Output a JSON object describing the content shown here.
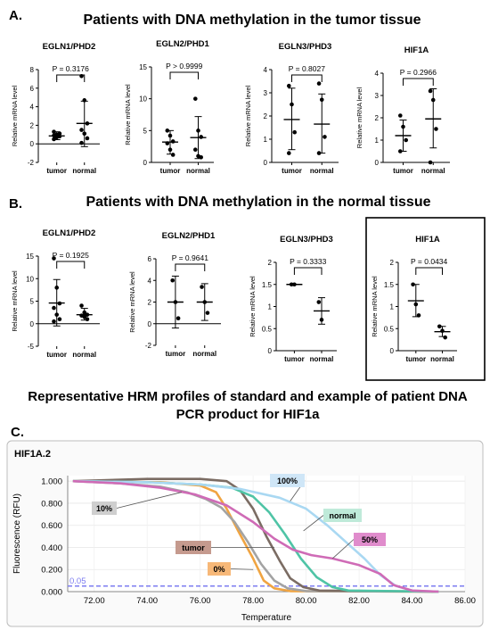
{
  "panels": {
    "A": {
      "label": "A.",
      "title": "Patients with DNA methylation in the tumor tissue"
    },
    "B": {
      "label": "B.",
      "title": "Patients with DNA methylation in the normal tissue"
    },
    "C": {
      "label": "C.",
      "title_line1": "Representative HRM profiles of standard and example of patient DNA",
      "title_line2": "PCR product for HIF1a"
    }
  },
  "chart_data": [
    {
      "id": "A1",
      "type": "scatter",
      "title": "EGLN1/PHD2",
      "ylabel": "Relative mRNA level",
      "ylim": [
        -2,
        8
      ],
      "yticks": [
        -2,
        0,
        2,
        4,
        6,
        8
      ],
      "categories": [
        "tumor",
        "normal"
      ],
      "p_label": "P = 0.3176",
      "series": [
        {
          "name": "tumor",
          "points": [
            0.5,
            0.7,
            0.8,
            0.9,
            1.0,
            1.1,
            1.3
          ],
          "mean": 0.85,
          "sd_low": 0.45,
          "sd_high": 1.3
        },
        {
          "name": "normal",
          "points": [
            7.3,
            4.7,
            2.2,
            1.5,
            1.1,
            0.6,
            0.1
          ],
          "mean": 2.2,
          "sd_low": -0.3,
          "sd_high": 4.6
        }
      ]
    },
    {
      "id": "A2",
      "type": "scatter",
      "title": "EGLN2/PHD1",
      "ylabel": "Relative mRNA level",
      "ylim": [
        0,
        15
      ],
      "yticks": [
        0,
        5,
        10,
        15
      ],
      "categories": [
        "tumor",
        "normal"
      ],
      "p_label": "P > 0.9999",
      "series": [
        {
          "name": "tumor",
          "points": [
            5.0,
            4.2,
            3.3,
            3.0,
            2.0,
            1.2
          ],
          "mean": 3.2,
          "sd_low": 1.3,
          "sd_high": 5.0
        },
        {
          "name": "normal",
          "points": [
            10.0,
            5.0,
            4.0,
            2.0,
            1.0,
            0.8
          ],
          "mean": 3.9,
          "sd_low": 0.6,
          "sd_high": 7.2
        }
      ]
    },
    {
      "id": "A3",
      "type": "scatter",
      "title": "EGLN3/PHD3",
      "ylabel": "Relative mRNA level",
      "ylim": [
        0,
        4
      ],
      "yticks": [
        0,
        1,
        2,
        3,
        4
      ],
      "categories": [
        "tumor",
        "normal"
      ],
      "p_label": "P = 0.8027",
      "series": [
        {
          "name": "tumor",
          "points": [
            3.3,
            2.5,
            1.3,
            0.4
          ],
          "mean": 1.85,
          "sd_low": 0.55,
          "sd_high": 3.2
        },
        {
          "name": "normal",
          "points": [
            3.4,
            2.7,
            1.1,
            0.4
          ],
          "mean": 1.65,
          "sd_low": 0.4,
          "sd_high": 2.95
        }
      ]
    },
    {
      "id": "A4",
      "type": "scatter",
      "title": "HIF1A",
      "ylabel": "Relative mRNA level",
      "ylim": [
        0,
        4
      ],
      "yticks": [
        0,
        1,
        2,
        3,
        4
      ],
      "categories": [
        "tumor",
        "normal"
      ],
      "p_label": "P = 0.2966",
      "series": [
        {
          "name": "tumor",
          "points": [
            2.1,
            1.6,
            1.0,
            0.5
          ],
          "mean": 1.2,
          "sd_low": 0.5,
          "sd_high": 1.9
        },
        {
          "name": "normal",
          "points": [
            3.2,
            2.8,
            1.5,
            0.0
          ],
          "mean": 1.95,
          "sd_low": 0.65,
          "sd_high": 3.3
        }
      ]
    },
    {
      "id": "B1",
      "type": "scatter",
      "title": "EGLN1/PHD2",
      "ylabel": "Relative mRNA level",
      "ylim": [
        -5,
        15
      ],
      "yticks": [
        -5,
        0,
        5,
        10,
        15
      ],
      "categories": [
        "tumor",
        "normal"
      ],
      "p_label": "P = 0.1925",
      "series": [
        {
          "name": "tumor",
          "points": [
            14.5,
            8.0,
            4.5,
            3.5,
            2.0,
            1.0,
            0.5
          ],
          "mean": 4.6,
          "sd_low": -0.5,
          "sd_high": 9.8
        },
        {
          "name": "normal",
          "points": [
            4.0,
            2.5,
            2.0,
            1.8,
            1.5,
            1.0
          ],
          "mean": 2.0,
          "sd_low": 0.8,
          "sd_high": 3.4
        }
      ]
    },
    {
      "id": "B2",
      "type": "scatter",
      "title": "EGLN2/PHD1",
      "ylabel": "Relative mRNA level",
      "ylim": [
        -2,
        6
      ],
      "yticks": [
        -2,
        0,
        2,
        4,
        6
      ],
      "categories": [
        "tumor",
        "normal"
      ],
      "p_label": "P = 0.9641",
      "series": [
        {
          "name": "tumor",
          "points": [
            4.0,
            2.0,
            0.5
          ],
          "mean": 2.0,
          "sd_low": -0.4,
          "sd_high": 4.4
        },
        {
          "name": "normal",
          "points": [
            3.4,
            2.0,
            1.0
          ],
          "mean": 2.0,
          "sd_low": 0.3,
          "sd_high": 3.7
        }
      ]
    },
    {
      "id": "B3",
      "type": "scatter",
      "title": "EGLN3/PHD3",
      "ylabel": "Relative mRNA level",
      "ylim": [
        0,
        2.0
      ],
      "yticks": [
        0,
        0.5,
        1.0,
        1.5,
        2.0
      ],
      "categories": [
        "tumor",
        "normal"
      ],
      "p_label": "P = 0.3333",
      "series": [
        {
          "name": "tumor",
          "points": [
            1.5,
            1.5
          ],
          "mean": 1.5,
          "sd_low": 1.5,
          "sd_high": 1.5
        },
        {
          "name": "normal",
          "points": [
            1.1,
            0.7
          ],
          "mean": 0.9,
          "sd_low": 0.6,
          "sd_high": 1.2
        }
      ]
    },
    {
      "id": "B4",
      "type": "scatter",
      "title": "HIF1A",
      "ylabel": "Relative mRNA level",
      "ylim": [
        0,
        2.0
      ],
      "yticks": [
        0,
        0.5,
        1.0,
        1.5,
        2.0
      ],
      "categories": [
        "tumor",
        "normal"
      ],
      "p_label": "P = 0.0434",
      "boxed": true,
      "series": [
        {
          "name": "tumor",
          "points": [
            1.5,
            1.05,
            0.8
          ],
          "mean": 1.13,
          "sd_low": 0.77,
          "sd_high": 1.5
        },
        {
          "name": "normal",
          "points": [
            0.55,
            0.45,
            0.3
          ],
          "mean": 0.43,
          "sd_low": 0.32,
          "sd_high": 0.55
        }
      ]
    },
    {
      "id": "C",
      "type": "line",
      "title": "HIF1A.2",
      "xlabel": "Temperature",
      "ylabel": "Fluorescence (RFU)",
      "xlim": [
        71,
        86
      ],
      "ylim": [
        0,
        1.05
      ],
      "xticks": [
        72,
        74,
        76,
        78,
        80,
        82,
        84,
        86
      ],
      "yticks": [
        0,
        0.2,
        0.4,
        0.6,
        0.8,
        1.0
      ],
      "threshold": {
        "value": 0.05,
        "label": "0.05",
        "color": "#7c7cf0"
      },
      "series": [
        {
          "name": "0%",
          "color": "#f0a441",
          "x": [
            71.2,
            74.5,
            76.0,
            76.6,
            77.0,
            77.5,
            78.0,
            78.4,
            78.8,
            79.4,
            85
          ],
          "y": [
            1.0,
            0.99,
            0.96,
            0.9,
            0.75,
            0.52,
            0.3,
            0.1,
            0.03,
            0.005,
            0.0
          ]
        },
        {
          "name": "10%",
          "color": "#a3a3a3",
          "x": [
            71.2,
            73.0,
            74.5,
            75.5,
            76.2,
            76.8,
            77.3,
            77.8,
            78.3,
            78.8,
            79.3,
            80.0,
            85
          ],
          "y": [
            1.0,
            0.98,
            0.95,
            0.9,
            0.84,
            0.76,
            0.63,
            0.45,
            0.25,
            0.1,
            0.03,
            0.005,
            0.0
          ]
        },
        {
          "name": "tumor",
          "color": "#7b6c63",
          "x": [
            71.2,
            74.0,
            76.0,
            77.0,
            77.5,
            78.0,
            78.5,
            79.0,
            79.4,
            79.9,
            80.5,
            85
          ],
          "y": [
            1.0,
            1.02,
            1.02,
            1.0,
            0.92,
            0.75,
            0.5,
            0.28,
            0.12,
            0.04,
            0.01,
            0.0
          ]
        },
        {
          "name": "normal",
          "color": "#4fc4a6",
          "x": [
            71.2,
            74.0,
            76.0,
            77.2,
            78.0,
            78.6,
            79.2,
            79.8,
            80.4,
            81.0,
            81.6,
            85
          ],
          "y": [
            1.0,
            0.99,
            0.97,
            0.94,
            0.86,
            0.72,
            0.52,
            0.3,
            0.13,
            0.04,
            0.01,
            0.0
          ]
        },
        {
          "name": "100%",
          "color": "#a9d8f2",
          "x": [
            71.2,
            74.0,
            76.0,
            77.5,
            79.0,
            80.0,
            80.8,
            81.5,
            82.2,
            82.8,
            83.4,
            84.0,
            85
          ],
          "y": [
            1.0,
            0.99,
            0.97,
            0.93,
            0.85,
            0.75,
            0.6,
            0.45,
            0.3,
            0.15,
            0.05,
            0.01,
            0.0
          ]
        },
        {
          "name": "50%",
          "color": "#cf6bb6",
          "x": [
            71.2,
            73.0,
            74.5,
            75.8,
            77.0,
            78.0,
            78.8,
            79.5,
            80.2,
            81.0,
            82.0,
            82.8,
            83.3,
            84.0,
            85
          ],
          "y": [
            1.0,
            0.98,
            0.94,
            0.88,
            0.78,
            0.63,
            0.48,
            0.38,
            0.33,
            0.3,
            0.24,
            0.16,
            0.06,
            0.01,
            0.0
          ]
        }
      ],
      "labels": [
        {
          "text": "10%",
          "series": "10%",
          "bg": "#cfcfcf",
          "tip_x": 75.3,
          "tip_y": 0.9
        },
        {
          "text": "100%",
          "series": "100%",
          "bg": "#cfe6f7",
          "tip_x": 79.4,
          "tip_y": 0.82
        },
        {
          "text": "normal",
          "series": "normal",
          "bg": "#bfead9",
          "tip_x": 79.9,
          "tip_y": 0.55
        },
        {
          "text": "50%",
          "series": "50%",
          "bg": "#e08ccc",
          "tip_x": 81.0,
          "tip_y": 0.3
        },
        {
          "text": "tumor",
          "series": "tumor",
          "bg": "#c59a8e",
          "tip_x": 78.8,
          "tip_y": 0.4
        },
        {
          "text": "0%",
          "series": "0%",
          "bg": "#f7b878",
          "tip_x": 78.0,
          "tip_y": 0.2
        }
      ]
    }
  ]
}
